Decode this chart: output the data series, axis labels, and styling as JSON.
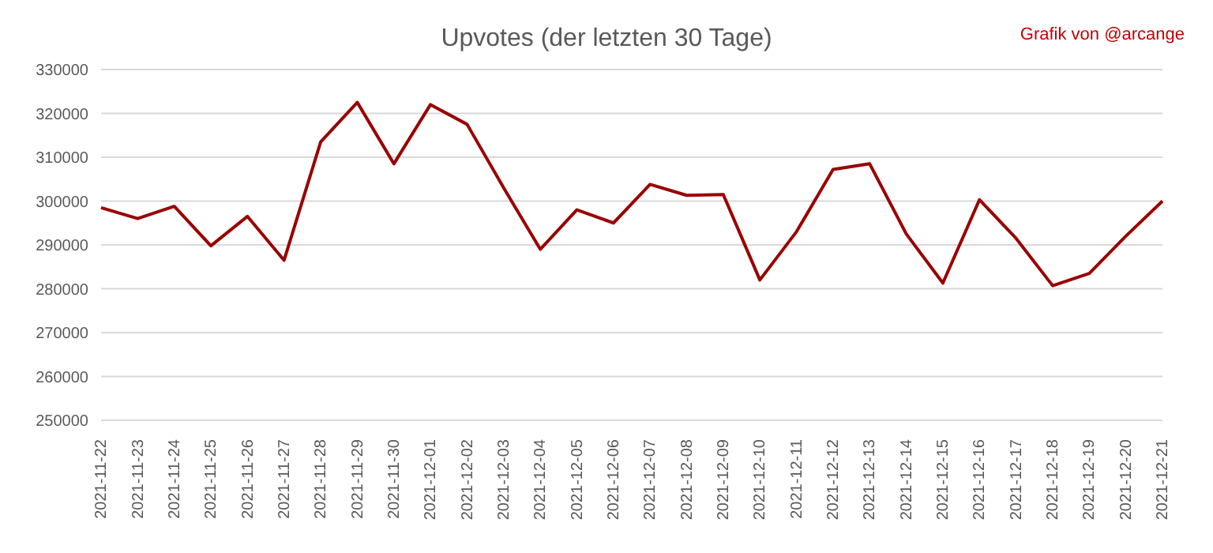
{
  "chart_data": {
    "type": "line",
    "title": "Upvotes (der letzten 30 Tage)",
    "annotations": [
      "Grafik von @arcange"
    ],
    "categories": [
      "2021-11-22",
      "2021-11-23",
      "2021-11-24",
      "2021-11-25",
      "2021-11-26",
      "2021-11-27",
      "2021-11-28",
      "2021-11-29",
      "2021-11-30",
      "2021-12-01",
      "2021-12-02",
      "2021-12-03",
      "2021-12-04",
      "2021-12-05",
      "2021-12-06",
      "2021-12-07",
      "2021-12-08",
      "2021-12-09",
      "2021-12-10",
      "2021-12-11",
      "2021-12-12",
      "2021-12-13",
      "2021-12-14",
      "2021-12-15",
      "2021-12-16",
      "2021-12-17",
      "2021-12-18",
      "2021-12-19",
      "2021-12-20",
      "2021-12-21"
    ],
    "series": [
      {
        "color": "#990000",
        "values": [
          298500,
          296000,
          298800,
          289800,
          296500,
          286500,
          313500,
          322500,
          308500,
          322000,
          317500,
          303000,
          289000,
          298000,
          295000,
          303800,
          301300,
          301500,
          282000,
          293000,
          307200,
          308500,
          292500,
          281300,
          300300,
          291500,
          280700,
          283500,
          292000,
          300000
        ]
      }
    ],
    "ylim": [
      250000,
      330000
    ],
    "yticks": [
      250000,
      260000,
      270000,
      280000,
      290000,
      300000,
      310000,
      320000,
      330000
    ],
    "grid": "y",
    "marker": "none",
    "line_style": "solid",
    "legend": false
  }
}
